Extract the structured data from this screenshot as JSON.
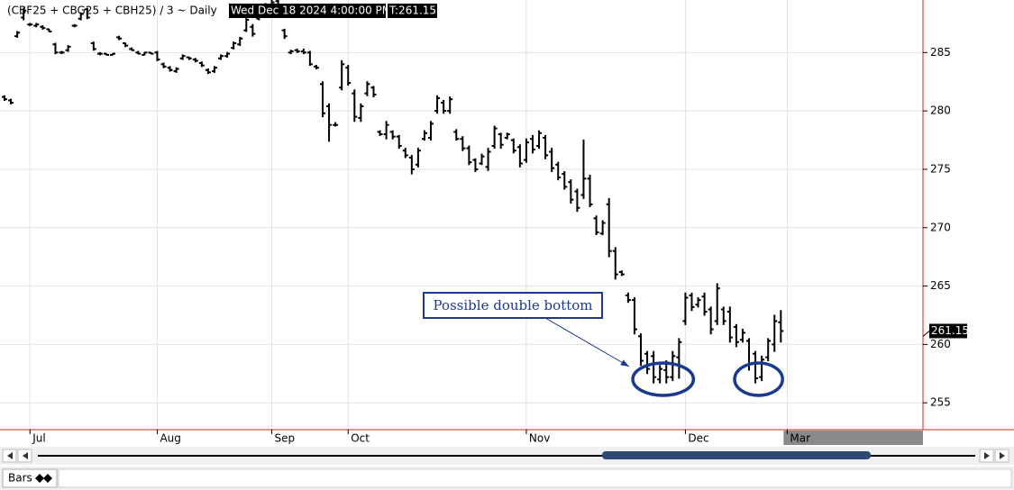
{
  "chart_data": {
    "type": "ohlc",
    "title": "(CBF25 + CBG25 + CBH25) / 3 ~ Daily",
    "info_date": "Wed Dec 18 2024 4:00:00 PM",
    "info_close": "T:261.15",
    "annotation": "Possible double bottom",
    "color": "#000000",
    "annotation_color": "#1a3a8f",
    "grid": true,
    "categories": [
      null,
      null,
      null,
      null,
      "Jul",
      null,
      null,
      null,
      null,
      null,
      null,
      null,
      null,
      null,
      null,
      null,
      null,
      null,
      null,
      null,
      null,
      null,
      null,
      null,
      "Aug",
      null,
      null,
      null,
      null,
      null,
      null,
      null,
      null,
      null,
      null,
      null,
      null,
      null,
      null,
      null,
      null,
      null,
      "Sep",
      null,
      null,
      null,
      null,
      null,
      null,
      null,
      null,
      null,
      null,
      null,
      "Oct",
      null,
      null,
      null,
      null,
      null,
      null,
      null,
      null,
      null,
      null,
      null,
      null,
      null,
      null,
      null,
      null,
      null,
      null,
      null,
      null,
      null,
      null,
      null,
      null,
      null,
      null,
      null,
      "Nov",
      null,
      null,
      null,
      null,
      null,
      null,
      null,
      null,
      null,
      null,
      null,
      null,
      null,
      null,
      null,
      null,
      null,
      null,
      null,
      null,
      null,
      null,
      null,
      null,
      "Dec",
      null,
      null,
      null,
      null,
      null,
      null,
      null,
      null,
      null,
      null,
      null,
      null,
      null,
      null,
      null,
      "Mar"
    ],
    "open": [
      281.2,
      280.9,
      286.4,
      288.0,
      287.4,
      287.3,
      287.2,
      287.0,
      285.7,
      285.0,
      285.2,
      287.3,
      287.9,
      288.7,
      285.8,
      284.9,
      284.9,
      284.8,
      286.3,
      285.8,
      285.3,
      285.0,
      284.8,
      285.0,
      285.0,
      284.0,
      283.7,
      283.4,
      284.5,
      284.6,
      284.4,
      284.1,
      283.5,
      283.4,
      284.5,
      284.7,
      285.4,
      285.7,
      286.9,
      287.2,
      287.9,
      288.4,
      288.8,
      289.4,
      286.9,
      285.0,
      285.2,
      285.1,
      285.0,
      283.8,
      282.3,
      280.4,
      278.8,
      282.0,
      283.7,
      281.5,
      279.4,
      281.5,
      282.0,
      278.2,
      278.0,
      278.2,
      277.8,
      276.6,
      276.0,
      275.4,
      277.6,
      277.7,
      280.0,
      280.7,
      280.0,
      278.2,
      277.6,
      276.8,
      275.8,
      275.5,
      275.2,
      277.0,
      278.0,
      277.7,
      277.5,
      276.9,
      275.8,
      277.6,
      277.0,
      277.7,
      276.5,
      275.4,
      274.6,
      273.9,
      273.1,
      272.8,
      274.2,
      270.8,
      269.5,
      272.0,
      268.0,
      266.2,
      264.2,
      263.8,
      260.7,
      259.2,
      259.0,
      257.0,
      257.8,
      257.2,
      258.9,
      262.0,
      264.2,
      263.4,
      264.1,
      263.0,
      262.0,
      263.0,
      262.8,
      261.5,
      260.4,
      260.3,
      259.2,
      257.2,
      258.9,
      260.0,
      261.9,
      null
    ],
    "high": [
      281.3,
      281.0,
      286.8,
      288.8,
      287.5,
      287.5,
      287.3,
      287.0,
      285.8,
      285.1,
      285.6,
      287.4,
      288.4,
      288.8,
      285.9,
      285.0,
      284.9,
      284.9,
      286.4,
      285.8,
      285.4,
      285.1,
      285.0,
      285.0,
      285.1,
      284.1,
      283.8,
      283.7,
      284.8,
      284.6,
      284.5,
      284.2,
      283.6,
      283.8,
      284.8,
      285.0,
      285.9,
      286.3,
      288.0,
      287.4,
      288.7,
      289.2,
      289.5,
      289.5,
      287.0,
      285.2,
      285.3,
      285.3,
      285.1,
      283.9,
      282.5,
      280.6,
      279.0,
      284.3,
      283.9,
      281.8,
      280.6,
      282.5,
      282.1,
      278.3,
      279.1,
      278.3,
      277.9,
      276.8,
      276.2,
      276.8,
      278.3,
      279.1,
      281.3,
      280.9,
      281.2,
      278.4,
      277.8,
      277.0,
      275.9,
      276.3,
      276.8,
      278.7,
      278.1,
      278.1,
      277.6,
      277.1,
      277.6,
      277.9,
      278.3,
      277.9,
      276.8,
      275.6,
      274.8,
      274.1,
      273.3,
      277.5,
      274.5,
      271.0,
      270.6,
      272.5,
      268.3,
      266.3,
      264.4,
      264.0,
      260.9,
      259.4,
      259.4,
      258.2,
      258.6,
      259.4,
      260.5,
      264.4,
      264.4,
      264.0,
      264.4,
      263.2,
      265.2,
      263.2,
      263.2,
      261.7,
      261.3,
      260.5,
      259.4,
      259.0,
      260.5,
      262.5,
      262.9,
      null
    ],
    "low": [
      280.9,
      280.6,
      286.3,
      287.8,
      287.3,
      287.2,
      287.0,
      286.8,
      284.9,
      284.9,
      285.1,
      287.2,
      287.8,
      287.9,
      285.2,
      284.8,
      284.8,
      284.8,
      286.1,
      285.5,
      285.2,
      284.9,
      284.8,
      284.9,
      284.3,
      283.7,
      283.4,
      283.3,
      284.4,
      284.4,
      284.2,
      283.8,
      283.2,
      283.3,
      284.4,
      284.6,
      285.3,
      285.6,
      286.8,
      286.4,
      287.8,
      288.3,
      288.7,
      288.8,
      286.2,
      284.9,
      285.0,
      284.9,
      283.9,
      283.6,
      279.5,
      277.4,
      278.7,
      281.8,
      282.2,
      279.1,
      279.1,
      281.3,
      281.2,
      277.9,
      277.6,
      277.6,
      276.8,
      276.0,
      274.6,
      275.2,
      277.5,
      277.5,
      279.8,
      279.8,
      279.8,
      277.5,
      276.6,
      275.4,
      274.8,
      275.4,
      274.9,
      276.8,
      276.8,
      277.6,
      276.4,
      275.2,
      275.6,
      276.4,
      276.8,
      275.9,
      274.8,
      274.1,
      273.3,
      272.1,
      271.4,
      272.5,
      271.8,
      269.4,
      269.4,
      267.5,
      265.6,
      265.9,
      263.6,
      260.9,
      258.2,
      257.5,
      256.7,
      256.7,
      256.7,
      256.9,
      257.1,
      261.7,
      262.9,
      263.2,
      262.5,
      260.9,
      261.7,
      261.7,
      260.2,
      259.8,
      260.2,
      257.8,
      256.7,
      256.9,
      258.6,
      259.4,
      260.2,
      null
    ],
    "close": [
      281.0,
      280.7,
      286.7,
      288.6,
      287.4,
      287.4,
      287.1,
      286.8,
      285.0,
      285.0,
      285.5,
      287.3,
      288.3,
      288.0,
      285.3,
      284.9,
      284.8,
      284.9,
      286.2,
      285.6,
      285.2,
      284.9,
      285.0,
      284.9,
      284.4,
      283.8,
      283.5,
      283.6,
      284.7,
      284.5,
      284.3,
      283.9,
      283.3,
      283.7,
      284.7,
      284.9,
      285.8,
      286.2,
      287.8,
      286.6,
      288.5,
      289.0,
      289.3,
      288.9,
      286.4,
      285.1,
      285.1,
      285.0,
      284.0,
      283.7,
      279.8,
      278.8,
      278.8,
      284.0,
      282.4,
      279.5,
      280.4,
      282.3,
      281.4,
      278.0,
      278.8,
      277.8,
      277.0,
      276.2,
      275.0,
      276.6,
      278.1,
      278.9,
      281.1,
      280.0,
      281.0,
      277.6,
      276.8,
      275.6,
      275.0,
      276.1,
      276.5,
      278.5,
      277.1,
      278.0,
      276.6,
      275.5,
      277.3,
      276.7,
      278.1,
      276.2,
      275.1,
      274.3,
      273.5,
      272.4,
      271.7,
      274.2,
      272.0,
      269.6,
      270.4,
      268.0,
      266.0,
      266.0,
      263.8,
      261.3,
      258.6,
      257.9,
      257.2,
      257.9,
      257.2,
      259.0,
      260.2,
      264.0,
      263.2,
      263.8,
      262.8,
      261.3,
      264.8,
      262.0,
      260.6,
      260.2,
      261.0,
      258.3,
      257.1,
      258.7,
      260.3,
      262.0,
      261.15,
      null
    ],
    "ylim": [
      252.7,
      289.5
    ],
    "yticks": [
      255,
      260,
      265,
      270,
      275,
      280,
      285
    ]
  },
  "toolbar": {
    "tab": "Bars"
  }
}
